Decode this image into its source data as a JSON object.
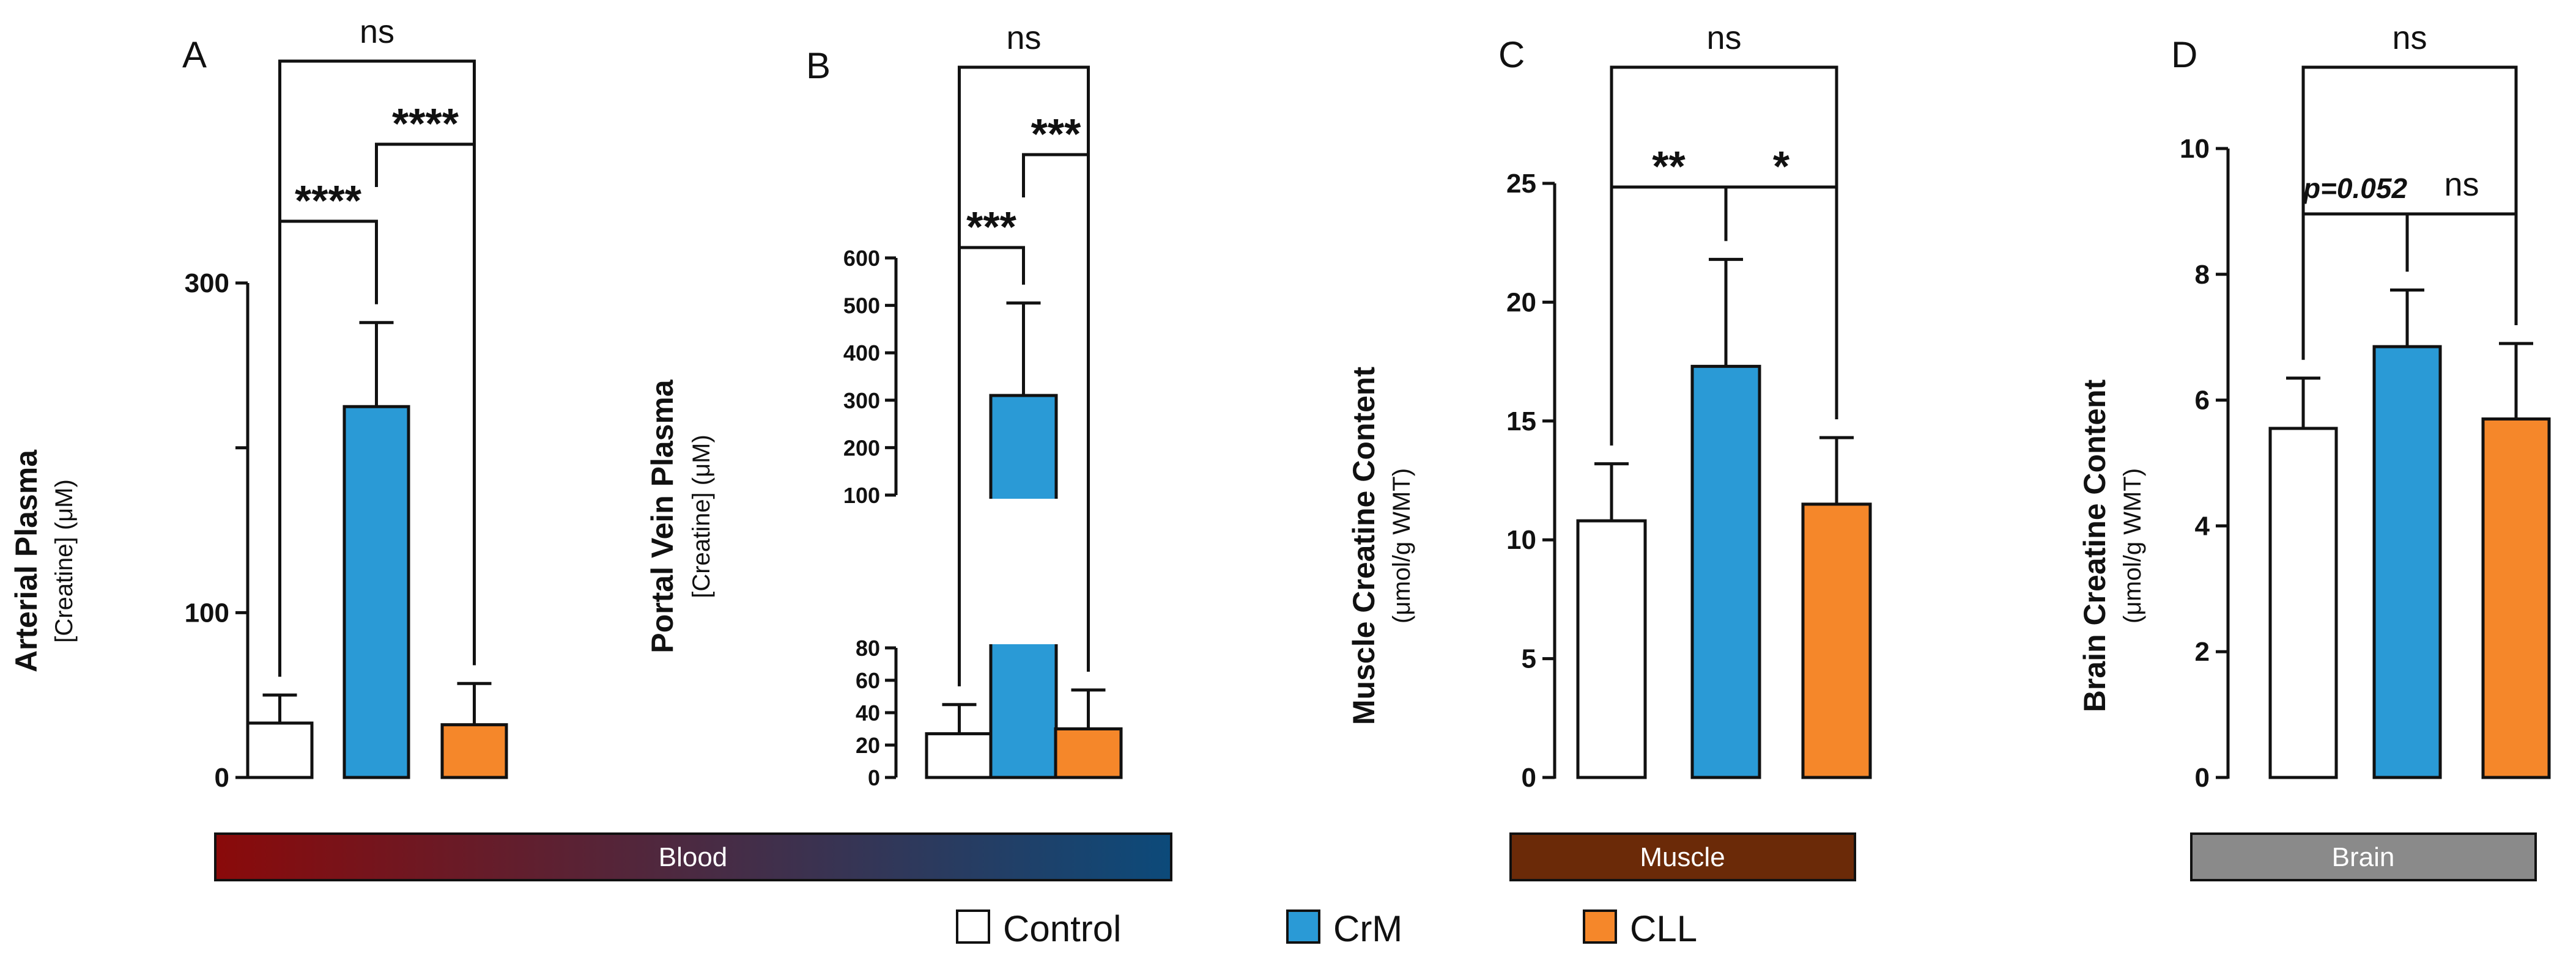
{
  "colors": {
    "control": "#ffffff",
    "crm": "#2a9ad6",
    "cll": "#f5872a"
  },
  "legend": [
    {
      "name": "Control",
      "color": "#ffffff"
    },
    {
      "name": "CrM",
      "color": "#2a9ad6"
    },
    {
      "name": "CLL",
      "color": "#f5872a"
    }
  ],
  "tissues": [
    {
      "label": "Blood",
      "gradient": [
        "#8a0a0a",
        "#0c4a7a"
      ]
    },
    {
      "label": "Muscle",
      "gradient": [
        "#6b2a08",
        "#6b2a08"
      ]
    },
    {
      "label": "Brain",
      "gradient": [
        "#8a8a8a",
        "#8a8a8a"
      ]
    }
  ],
  "chart_data": [
    {
      "type": "bar",
      "panel": "A",
      "ylabel_main": "Arterial Plasma",
      "ylabel_sub": "[Creatine] (μM)",
      "categories": [
        "Control",
        "CrM",
        "CLL"
      ],
      "values": [
        33,
        225,
        32
      ],
      "errors": [
        17,
        51,
        25
      ],
      "ylim": [
        0,
        300
      ],
      "yticks": [
        0,
        100,
        300
      ],
      "yticks_all": [
        0,
        100,
        200,
        300
      ],
      "comparisons": [
        {
          "from": 0,
          "to": 1,
          "label": "****"
        },
        {
          "from": 1,
          "to": 2,
          "label": "****"
        },
        {
          "from": 0,
          "to": 2,
          "label": "ns"
        }
      ]
    },
    {
      "type": "bar",
      "panel": "B",
      "broken_axis": true,
      "ylabel_main": "Portal Vein Plasma",
      "ylabel_sub": "[Creatine] (μM)",
      "categories": [
        "Control",
        "CrM",
        "CLL"
      ],
      "values": [
        27,
        310,
        30
      ],
      "errors": [
        18,
        195,
        24
      ],
      "lower_range": [
        0,
        80
      ],
      "upper_range": [
        100,
        600
      ],
      "yticks_lower": [
        0,
        20,
        40,
        60,
        80
      ],
      "yticks_upper": [
        100,
        200,
        300,
        400,
        500,
        600
      ],
      "comparisons": [
        {
          "from": 0,
          "to": 1,
          "label": "***"
        },
        {
          "from": 1,
          "to": 2,
          "label": "***"
        },
        {
          "from": 0,
          "to": 2,
          "label": "ns"
        }
      ]
    },
    {
      "type": "bar",
      "panel": "C",
      "ylabel_main": "Muscle Creatine Content",
      "ylabel_sub": "(μmol/g WMT)",
      "categories": [
        "Control",
        "CrM",
        "CLL"
      ],
      "values": [
        10.8,
        17.3,
        11.5
      ],
      "errors": [
        2.4,
        4.5,
        2.8
      ],
      "ylim": [
        0,
        25
      ],
      "yticks": [
        0,
        5,
        10,
        15,
        20,
        25
      ],
      "comparisons": [
        {
          "from": 0,
          "to": 1,
          "label": "**"
        },
        {
          "from": 1,
          "to": 2,
          "label": "*"
        },
        {
          "from": 0,
          "to": 2,
          "label": "ns"
        }
      ]
    },
    {
      "type": "bar",
      "panel": "D",
      "ylabel_main": "Brain Creatine Content",
      "ylabel_sub": "(μmol/g WMT)",
      "categories": [
        "Control",
        "CrM",
        "CLL"
      ],
      "values": [
        5.55,
        6.85,
        5.7
      ],
      "errors": [
        0.8,
        0.9,
        1.2
      ],
      "ylim": [
        0,
        10
      ],
      "yticks": [
        0,
        2,
        4,
        6,
        8,
        10
      ],
      "comparisons": [
        {
          "from": 0,
          "to": 1,
          "label": "p=0.052"
        },
        {
          "from": 1,
          "to": 2,
          "label": "ns"
        },
        {
          "from": 0,
          "to": 2,
          "label": "ns"
        }
      ]
    }
  ]
}
